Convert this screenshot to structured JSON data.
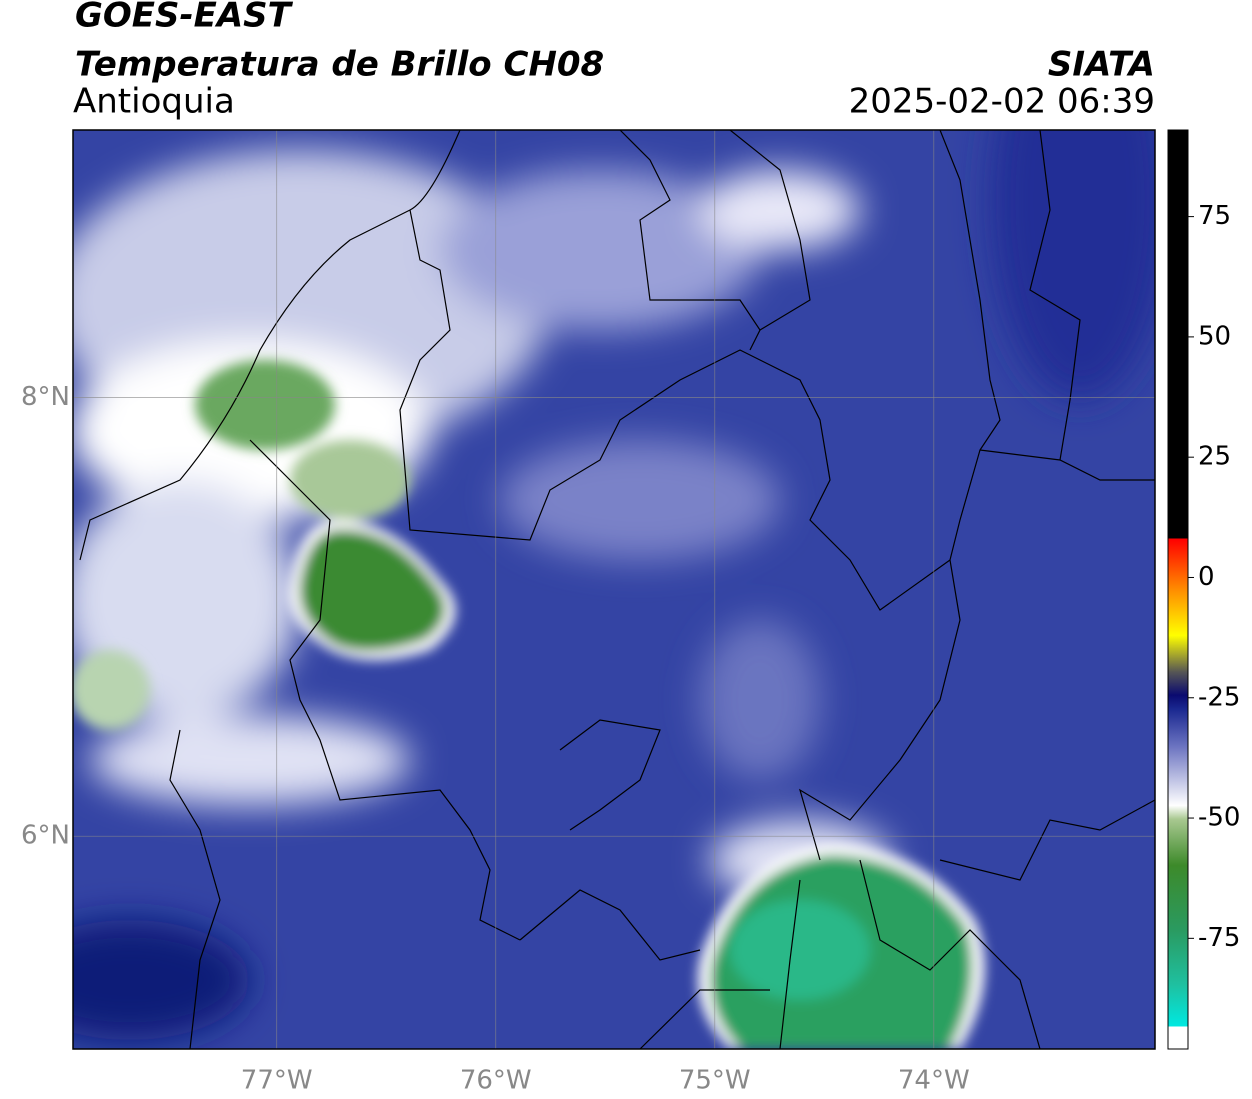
{
  "header": {
    "title": "GOES-EAST",
    "subtitle": "Temperatura de Brillo CH08",
    "region": "Antioquia",
    "source": "SIATA",
    "datetime": "2025-02-02 06:39"
  },
  "map": {
    "xlim": [
      -77.93,
      -72.99
    ],
    "ylim": [
      5.03,
      9.22
    ],
    "xticks": [
      {
        "value": -77,
        "label": "77°W"
      },
      {
        "value": -76,
        "label": "76°W"
      },
      {
        "value": -75,
        "label": "75°W"
      },
      {
        "value": -74,
        "label": "74°W"
      }
    ],
    "yticks": [
      {
        "value": 8,
        "label": "8°N"
      },
      {
        "value": 6,
        "label": "6°N"
      }
    ],
    "grid": true
  },
  "colorbar": {
    "lim": [
      -98,
      93
    ],
    "ticks": [
      75,
      50,
      25,
      0,
      -25,
      -50,
      -75
    ]
  }
}
